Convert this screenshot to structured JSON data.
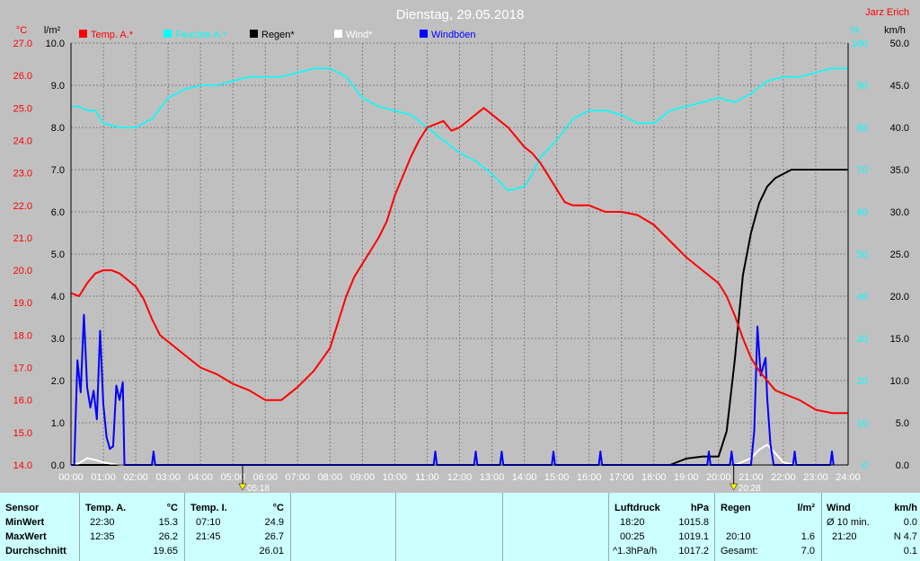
{
  "chart_data": {
    "type": "line",
    "title": "Dienstag, 29.05.2018",
    "author": "Jarz Erich",
    "legend": [
      "Temp. A.*",
      "Feuchte A.*",
      "Regen*",
      "Wind*",
      "Windböen"
    ],
    "axis_units": {
      "left1": "°C",
      "left2": "l/m²",
      "right1": "%",
      "right2": "km/h"
    },
    "temp_ticks": [
      "14.0",
      "15.0",
      "16.0",
      "17.0",
      "18.0",
      "19.0",
      "20.0",
      "21.0",
      "22.0",
      "23.0",
      "24.0",
      "25.0",
      "26.0",
      "27.0"
    ],
    "rain_ticks": [
      "0.0",
      "1.0",
      "2.0",
      "3.0",
      "4.0",
      "5.0",
      "6.0",
      "7.0",
      "8.0",
      "9.0",
      "10.0"
    ],
    "hum_ticks": [
      "0",
      "10",
      "20",
      "30",
      "40",
      "50",
      "60",
      "70",
      "80",
      "90",
      "100"
    ],
    "wind_ticks": [
      "0.0",
      "5.0",
      "10.0",
      "15.0",
      "20.0",
      "25.0",
      "30.0",
      "35.0",
      "40.0",
      "45.0",
      "50.0"
    ],
    "x_ticks": [
      "00:00",
      "01:00",
      "02:00",
      "03:00",
      "04:00",
      "05:00",
      "06:00",
      "07:00",
      "08:00",
      "09:00",
      "10:00",
      "11:00",
      "12:00",
      "13:00",
      "14:00",
      "15:00",
      "16:00",
      "17:00",
      "18:00",
      "19:00",
      "20:00",
      "21:00",
      "22:00",
      "23:00",
      "24:00"
    ],
    "sunrise": "05:18",
    "sunset": "20:28",
    "temp_range": [
      14,
      27
    ],
    "rain_range": [
      0,
      10
    ],
    "hum_range": [
      0,
      100
    ],
    "wind_range": [
      0,
      50
    ],
    "colors": {
      "temp": "#ff0000",
      "humidity": "#00ffff",
      "rain": "#000000",
      "wind": "#ffffff",
      "gusts": "#0000ff",
      "plot_bg": "#c0c0c0",
      "grid": "#808080"
    },
    "series": [
      {
        "name": "Temp. A.*",
        "axis": "temp",
        "points": [
          [
            0,
            19.3
          ],
          [
            0.25,
            19.2
          ],
          [
            0.5,
            19.6
          ],
          [
            0.75,
            19.9
          ],
          [
            1,
            20.0
          ],
          [
            1.25,
            20.0
          ],
          [
            1.5,
            19.9
          ],
          [
            1.75,
            19.7
          ],
          [
            2,
            19.5
          ],
          [
            2.25,
            19.1
          ],
          [
            2.5,
            18.5
          ],
          [
            2.75,
            18.0
          ],
          [
            3,
            17.8
          ],
          [
            3.5,
            17.4
          ],
          [
            4,
            17.0
          ],
          [
            4.5,
            16.8
          ],
          [
            5,
            16.5
          ],
          [
            5.5,
            16.3
          ],
          [
            6,
            16.0
          ],
          [
            6.5,
            16.0
          ],
          [
            7,
            16.4
          ],
          [
            7.5,
            16.9
          ],
          [
            8,
            17.6
          ],
          [
            8.25,
            18.4
          ],
          [
            8.5,
            19.2
          ],
          [
            8.75,
            19.8
          ],
          [
            9,
            20.2
          ],
          [
            9.25,
            20.6
          ],
          [
            9.5,
            21.0
          ],
          [
            9.75,
            21.5
          ],
          [
            10,
            22.3
          ],
          [
            10.25,
            22.9
          ],
          [
            10.5,
            23.5
          ],
          [
            10.75,
            24.0
          ],
          [
            11,
            24.4
          ],
          [
            11.25,
            24.5
          ],
          [
            11.5,
            24.6
          ],
          [
            11.75,
            24.3
          ],
          [
            12,
            24.4
          ],
          [
            12.25,
            24.6
          ],
          [
            12.5,
            24.8
          ],
          [
            12.75,
            25.0
          ],
          [
            13,
            24.8
          ],
          [
            13.25,
            24.6
          ],
          [
            13.5,
            24.4
          ],
          [
            13.75,
            24.1
          ],
          [
            14,
            23.8
          ],
          [
            14.25,
            23.6
          ],
          [
            14.5,
            23.3
          ],
          [
            14.75,
            22.9
          ],
          [
            15,
            22.5
          ],
          [
            15.25,
            22.1
          ],
          [
            15.5,
            22.0
          ],
          [
            16,
            22.0
          ],
          [
            16.5,
            21.8
          ],
          [
            17,
            21.8
          ],
          [
            17.5,
            21.7
          ],
          [
            18,
            21.4
          ],
          [
            18.5,
            20.9
          ],
          [
            19,
            20.4
          ],
          [
            19.5,
            20.0
          ],
          [
            20,
            19.6
          ],
          [
            20.25,
            19.2
          ],
          [
            20.5,
            18.6
          ],
          [
            20.75,
            17.9
          ],
          [
            21,
            17.3
          ],
          [
            21.25,
            16.9
          ],
          [
            21.5,
            16.6
          ],
          [
            21.75,
            16.3
          ],
          [
            22,
            16.2
          ],
          [
            22.5,
            16.0
          ],
          [
            23,
            15.7
          ],
          [
            23.5,
            15.6
          ],
          [
            24,
            15.6
          ]
        ]
      },
      {
        "name": "Feuchte A.*",
        "axis": "hum",
        "points": [
          [
            0,
            85
          ],
          [
            0.25,
            85
          ],
          [
            0.5,
            84
          ],
          [
            0.75,
            84
          ],
          [
            1,
            81
          ],
          [
            1.5,
            80
          ],
          [
            2,
            80
          ],
          [
            2.5,
            82
          ],
          [
            3,
            87
          ],
          [
            3.5,
            89
          ],
          [
            4,
            90
          ],
          [
            4.5,
            90
          ],
          [
            5,
            91
          ],
          [
            5.5,
            92
          ],
          [
            6,
            92
          ],
          [
            6.5,
            92
          ],
          [
            7,
            93
          ],
          [
            7.5,
            94
          ],
          [
            8,
            94
          ],
          [
            8.5,
            92
          ],
          [
            9,
            87
          ],
          [
            9.5,
            85
          ],
          [
            10,
            84
          ],
          [
            10.5,
            83
          ],
          [
            11,
            80
          ],
          [
            11.5,
            77
          ],
          [
            12,
            74
          ],
          [
            12.5,
            72
          ],
          [
            13,
            69
          ],
          [
            13.25,
            67
          ],
          [
            13.5,
            65
          ],
          [
            14,
            66
          ],
          [
            14.25,
            69
          ],
          [
            14.5,
            73
          ],
          [
            15,
            77
          ],
          [
            15.5,
            82
          ],
          [
            16,
            84
          ],
          [
            16.5,
            84
          ],
          [
            17,
            83
          ],
          [
            17.5,
            81
          ],
          [
            18,
            81
          ],
          [
            18.5,
            84
          ],
          [
            19,
            85
          ],
          [
            19.5,
            86
          ],
          [
            20,
            87
          ],
          [
            20.5,
            86
          ],
          [
            21,
            88
          ],
          [
            21.5,
            91
          ],
          [
            22,
            92
          ],
          [
            22.5,
            92
          ],
          [
            23,
            93
          ],
          [
            23.5,
            94
          ],
          [
            24,
            94
          ]
        ]
      },
      {
        "name": "Regen*",
        "axis": "rain",
        "points": [
          [
            0,
            0
          ],
          [
            18.5,
            0
          ],
          [
            19,
            0.15
          ],
          [
            19.5,
            0.2
          ],
          [
            20,
            0.2
          ],
          [
            20.25,
            0.8
          ],
          [
            20.5,
            2.5
          ],
          [
            20.75,
            4.5
          ],
          [
            21,
            5.5
          ],
          [
            21.25,
            6.2
          ],
          [
            21.5,
            6.6
          ],
          [
            21.75,
            6.8
          ],
          [
            22,
            6.9
          ],
          [
            22.25,
            7.0
          ],
          [
            22.5,
            7.0
          ],
          [
            23,
            7.0
          ],
          [
            23.5,
            7.0
          ],
          [
            24,
            7.0
          ]
        ]
      },
      {
        "name": "Wind*",
        "axis": "wind",
        "points": [
          [
            0,
            0
          ],
          [
            0.25,
            0.2
          ],
          [
            0.5,
            0.8
          ],
          [
            0.75,
            0.6
          ],
          [
            1,
            0.3
          ],
          [
            1.5,
            0
          ],
          [
            20.5,
            0
          ],
          [
            21,
            0.8
          ],
          [
            21.25,
            1.8
          ],
          [
            21.5,
            2.4
          ],
          [
            21.75,
            1.4
          ],
          [
            22,
            0.3
          ],
          [
            22.25,
            0.1
          ],
          [
            22.5,
            0
          ]
        ]
      },
      {
        "name": "Windböen",
        "axis": "wind",
        "points": [
          [
            0,
            0
          ],
          [
            0.1,
            0
          ],
          [
            0.2,
            12.4
          ],
          [
            0.3,
            8.6
          ],
          [
            0.4,
            17.8
          ],
          [
            0.5,
            9.2
          ],
          [
            0.6,
            6.8
          ],
          [
            0.7,
            8.8
          ],
          [
            0.8,
            5.4
          ],
          [
            0.9,
            15.9
          ],
          [
            1,
            7.2
          ],
          [
            1.1,
            3.3
          ],
          [
            1.2,
            1.9
          ],
          [
            1.3,
            2.2
          ],
          [
            1.4,
            9.4
          ],
          [
            1.5,
            7.7
          ],
          [
            1.6,
            9.8
          ],
          [
            1.65,
            0
          ],
          [
            2.5,
            0
          ],
          [
            2.55,
            1.6
          ],
          [
            2.6,
            0
          ],
          [
            11.2,
            0
          ],
          [
            11.25,
            1.6
          ],
          [
            11.3,
            0
          ],
          [
            12.45,
            0
          ],
          [
            12.5,
            1.6
          ],
          [
            12.55,
            0
          ],
          [
            13.25,
            0
          ],
          [
            13.3,
            1.6
          ],
          [
            13.35,
            0
          ],
          [
            14.85,
            0
          ],
          [
            14.9,
            1.6
          ],
          [
            14.95,
            0
          ],
          [
            16.3,
            0
          ],
          [
            16.35,
            1.6
          ],
          [
            16.4,
            0
          ],
          [
            19.65,
            0
          ],
          [
            19.7,
            1.6
          ],
          [
            19.75,
            0
          ],
          [
            20.35,
            0
          ],
          [
            20.4,
            1.6
          ],
          [
            20.45,
            0
          ],
          [
            21.0,
            0
          ],
          [
            21.1,
            4.0
          ],
          [
            21.2,
            16.4
          ],
          [
            21.3,
            10.6
          ],
          [
            21.45,
            12.7
          ],
          [
            21.5,
            8.0
          ],
          [
            21.6,
            2.5
          ],
          [
            21.7,
            0
          ],
          [
            22.3,
            0
          ],
          [
            22.35,
            1.6
          ],
          [
            22.4,
            0
          ],
          [
            23.45,
            0
          ],
          [
            23.5,
            1.6
          ],
          [
            23.55,
            0
          ]
        ]
      }
    ]
  },
  "table": {
    "sensor": {
      "header": "Sensor",
      "min": "MinWert",
      "max": "MaxWert",
      "avg": "Durchschnitt"
    },
    "temp_a": {
      "header": "Temp. A.",
      "unit": "°C",
      "min_time": "22:30",
      "min": "15.3",
      "max_time": "12:35",
      "max": "26.2",
      "avg": "19.65"
    },
    "temp_i": {
      "header": "Temp. I.",
      "unit": "°C",
      "min_time": "07:10",
      "min": "24.9",
      "max_time": "21:45",
      "max": "26.7",
      "avg": "26.01"
    },
    "pressure": {
      "header": "Luftdruck",
      "unit": "hPa",
      "min_time": "18:20",
      "min": "1015.8",
      "max_time": "00:25",
      "max": "1019.1",
      "trend": "^1.3hPa/h",
      "current": "1017.2"
    },
    "rain": {
      "header": "Regen",
      "unit": "l/m²",
      "max_time": "20:10",
      "max": "1.6",
      "total_label": "Gesamt:",
      "total": "7.0"
    },
    "wind": {
      "header": "Wind",
      "unit": "km/h",
      "avg_label": "Ø 10 min.",
      "avg": "0.0",
      "max_time": "21:20",
      "max": "N 4.7",
      "mean": "0.1"
    }
  }
}
